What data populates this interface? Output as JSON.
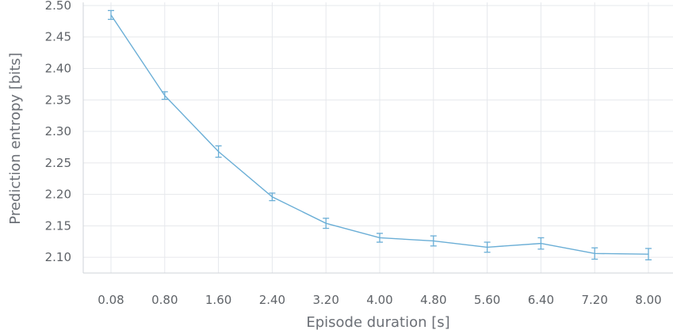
{
  "chart_data": {
    "type": "line",
    "title": "",
    "xlabel": "Episode duration [s]",
    "ylabel": "Prediction entropy [bits]",
    "categories": [
      "0.08",
      "0.80",
      "1.60",
      "2.40",
      "3.20",
      "4.00",
      "4.80",
      "5.60",
      "6.40",
      "7.20",
      "8.00"
    ],
    "series": [
      {
        "values": [
          2.485,
          2.357,
          2.268,
          2.196,
          2.154,
          2.131,
          2.126,
          2.116,
          2.122,
          2.106,
          2.105
        ],
        "errors": [
          0.007,
          0.006,
          0.009,
          0.006,
          0.008,
          0.007,
          0.008,
          0.008,
          0.009,
          0.009,
          0.009
        ],
        "color": "#6aaed6"
      }
    ],
    "yticks": [
      "2.10",
      "2.15",
      "2.20",
      "2.25",
      "2.30",
      "2.35",
      "2.40",
      "2.45",
      "2.50"
    ],
    "ylim": [
      2.075,
      2.505
    ],
    "grid": true
  }
}
